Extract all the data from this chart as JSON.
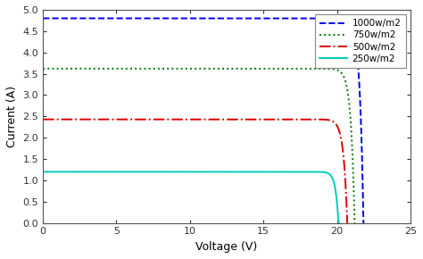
{
  "title": "",
  "xlabel": "Voltage (V)",
  "ylabel": "Current (A)",
  "xlim": [
    0,
    25
  ],
  "ylim": [
    0,
    5
  ],
  "xticks": [
    0,
    5,
    10,
    15,
    20,
    25
  ],
  "yticks": [
    0,
    0.5,
    1,
    1.5,
    2,
    2.5,
    3,
    3.5,
    4,
    4.5,
    5
  ],
  "curves": [
    {
      "label": "1000w/m2",
      "isc": 4.8,
      "voc": 21.8,
      "knee": 19.8,
      "sharpness": 8.0,
      "color": "#0000ee",
      "linestyle": "--",
      "linewidth": 1.4,
      "dashes": [
        6,
        3
      ]
    },
    {
      "label": "750w/m2",
      "isc": 3.62,
      "voc": 21.2,
      "knee": 19.2,
      "sharpness": 8.0,
      "color": "#007700",
      "linestyle": ":",
      "linewidth": 1.4,
      "dashes": null
    },
    {
      "label": "500w/m2",
      "isc": 2.43,
      "voc": 20.7,
      "knee": 18.7,
      "sharpness": 8.0,
      "color": "#dd0000",
      "linestyle": "-.",
      "linewidth": 1.4,
      "dashes": null
    },
    {
      "label": "250w/m2",
      "isc": 1.2,
      "voc": 20.1,
      "knee": 18.1,
      "sharpness": 10.0,
      "color": "#00ccbb",
      "linestyle": "-",
      "linewidth": 1.4,
      "dashes": null
    }
  ],
  "legend_loc": "upper right",
  "background_color": "#ffffff",
  "font_family": "DejaVu Sans",
  "tick_fontsize": 8,
  "label_fontsize": 9
}
